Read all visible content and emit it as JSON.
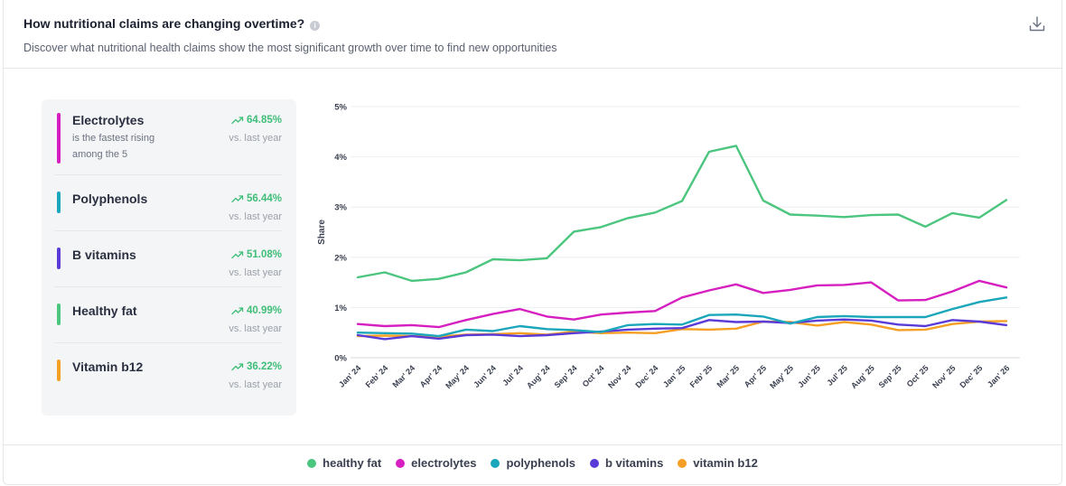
{
  "header": {
    "title": "How nutritional claims are changing overtime?",
    "subtitle": "Discover what nutritional health claims show the most significant growth over time to find new opportunities",
    "info_icon": "i"
  },
  "kpis": [
    {
      "name": "Electrolytes",
      "desc": "is the fastest rising among the 5",
      "change": "64.85%",
      "vs": "vs. last year",
      "color": "#d61fc0"
    },
    {
      "name": "Polyphenols",
      "desc": "",
      "change": "56.44%",
      "vs": "vs. last year",
      "color": "#1aa6bb"
    },
    {
      "name": "B vitamins",
      "desc": "",
      "change": "51.08%",
      "vs": "vs. last year",
      "color": "#5a3bd8"
    },
    {
      "name": "Healthy fat",
      "desc": "",
      "change": "40.99%",
      "vs": "vs. last year",
      "color": "#4cc57f"
    },
    {
      "name": "Vitamin b12",
      "desc": "",
      "change": "36.22%",
      "vs": "vs. last year",
      "color": "#f5a025"
    }
  ],
  "chart_data": {
    "type": "line",
    "ylabel": "Share",
    "xlabel": "",
    "ylim": [
      0,
      5
    ],
    "yticks": [
      "0%",
      "1%",
      "2%",
      "3%",
      "4%",
      "5%"
    ],
    "categories": [
      "Jan' 24",
      "Feb' 24",
      "Mar' 24",
      "Apr' 24",
      "May' 24",
      "Jun' 24",
      "Jul' 24",
      "Aug' 24",
      "Sep' 24",
      "Oct' 24",
      "Nov' 24",
      "Dec' 24",
      "Jan' 25",
      "Feb' 25",
      "Mar' 25",
      "Apr' 25",
      "May' 25",
      "Jun' 25",
      "Jul' 25",
      "Aug' 25",
      "Sep' 25",
      "Oct' 25",
      "Nov' 25",
      "Dec' 25",
      "Jan' 26"
    ],
    "series": [
      {
        "name": "healthy fat",
        "color": "#4cc57f",
        "values": [
          1.6,
          1.7,
          1.53,
          1.57,
          1.7,
          1.96,
          1.94,
          1.98,
          2.51,
          2.6,
          2.78,
          2.89,
          3.12,
          4.1,
          4.22,
          3.13,
          2.85,
          2.83,
          2.8,
          2.84,
          2.85,
          2.61,
          2.88,
          2.79,
          3.14
        ]
      },
      {
        "name": "electrolytes",
        "color": "#d61fc0",
        "values": [
          0.67,
          0.63,
          0.65,
          0.61,
          0.75,
          0.87,
          0.97,
          0.82,
          0.76,
          0.86,
          0.9,
          0.93,
          1.2,
          1.34,
          1.46,
          1.29,
          1.35,
          1.44,
          1.45,
          1.5,
          1.14,
          1.15,
          1.32,
          1.53,
          1.4
        ]
      },
      {
        "name": "polyphenols",
        "color": "#1aa6bb",
        "values": [
          0.5,
          0.49,
          0.48,
          0.43,
          0.56,
          0.53,
          0.63,
          0.57,
          0.55,
          0.51,
          0.65,
          0.67,
          0.66,
          0.85,
          0.86,
          0.82,
          0.68,
          0.81,
          0.83,
          0.81,
          0.81,
          0.81,
          0.97,
          1.11,
          1.2
        ]
      },
      {
        "name": "b vitamins",
        "color": "#5a3bd8",
        "values": [
          0.45,
          0.37,
          0.43,
          0.38,
          0.45,
          0.46,
          0.43,
          0.45,
          0.49,
          0.52,
          0.56,
          0.58,
          0.59,
          0.75,
          0.71,
          0.72,
          0.69,
          0.74,
          0.76,
          0.74,
          0.66,
          0.63,
          0.75,
          0.72,
          0.65
        ]
      },
      {
        "name": "vitamin b12",
        "color": "#f5a025",
        "values": [
          0.43,
          0.44,
          0.43,
          0.42,
          0.46,
          0.47,
          0.49,
          0.46,
          0.52,
          0.49,
          0.5,
          0.49,
          0.57,
          0.56,
          0.58,
          0.72,
          0.71,
          0.64,
          0.71,
          0.66,
          0.55,
          0.56,
          0.67,
          0.72,
          0.73
        ]
      }
    ]
  }
}
